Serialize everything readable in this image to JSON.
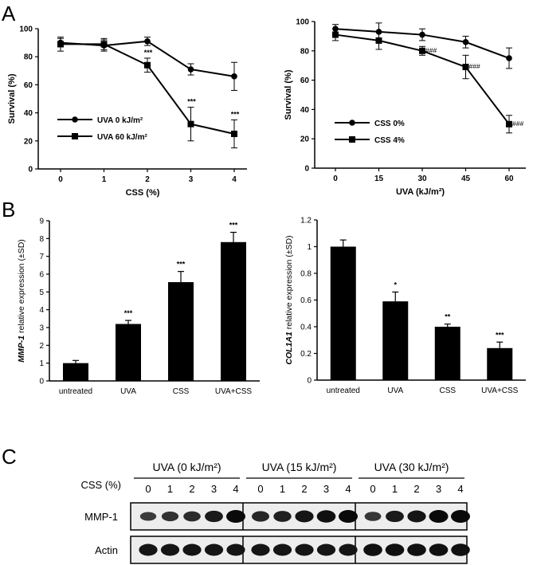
{
  "panel_labels": {
    "a": "A",
    "b": "B",
    "c": "C"
  },
  "chart_data": [
    {
      "type": "line",
      "title": "",
      "xlabel": "CSS (%)",
      "ylabel": "Survival (%)",
      "x": [
        0,
        1,
        2,
        3,
        4
      ],
      "xticks": [
        "0",
        "1",
        "2",
        "3",
        "4"
      ],
      "yticks": [
        "0",
        "20",
        "40",
        "60",
        "80",
        "100"
      ],
      "ylim": [
        0,
        100
      ],
      "legend_position": "bottom-left",
      "series": [
        {
          "name": "UVA 0 kJ/m²",
          "marker": "circle",
          "values": [
            90,
            88,
            91,
            71,
            66
          ],
          "errors": [
            3,
            4,
            3,
            4,
            10
          ],
          "annotations": [
            "",
            "",
            "",
            "",
            ""
          ]
        },
        {
          "name": "UVA 60 kJ/m²",
          "marker": "square",
          "values": [
            89,
            89,
            74,
            32,
            25
          ],
          "errors": [
            5,
            4,
            5,
            12,
            10
          ],
          "annotations": [
            "",
            "",
            "***",
            "***",
            "***"
          ]
        }
      ]
    },
    {
      "type": "line",
      "title": "",
      "xlabel": "UVA (kJ/m²)",
      "ylabel": "Survival (%)",
      "x": [
        0,
        15,
        30,
        45,
        60
      ],
      "xticks": [
        "0",
        "15",
        "30",
        "45",
        "60"
      ],
      "yticks": [
        "0",
        "20",
        "40",
        "60",
        "80",
        "100"
      ],
      "ylim": [
        0,
        100
      ],
      "legend_position": "bottom-left",
      "series": [
        {
          "name": "CSS 0%",
          "marker": "circle",
          "values": [
            95,
            93,
            91,
            86,
            75
          ],
          "errors": [
            3,
            6,
            4,
            4,
            7
          ],
          "annotations": [
            "",
            "",
            "",
            "",
            ""
          ]
        },
        {
          "name": "CSS 4%",
          "marker": "square",
          "values": [
            91,
            87,
            80,
            69,
            30
          ],
          "errors": [
            4,
            6,
            3,
            8,
            6
          ],
          "annotations": [
            "",
            "",
            "###",
            "###",
            "###"
          ]
        }
      ]
    },
    {
      "type": "bar",
      "title": "",
      "xlabel": "",
      "ylabel_italic": "MMP-1",
      "ylabel_rest": " relative expression (±SD)",
      "categories": [
        "untreated",
        "UVA",
        "CSS",
        "UVA+CSS"
      ],
      "values": [
        1.0,
        3.2,
        5.55,
        7.8
      ],
      "errors": [
        0.15,
        0.2,
        0.6,
        0.55
      ],
      "annotations": [
        "",
        "***",
        "***",
        "***"
      ],
      "yticks": [
        "0",
        "1",
        "2",
        "3",
        "4",
        "5",
        "6",
        "7",
        "8",
        "9"
      ],
      "ylim": [
        0,
        9
      ]
    },
    {
      "type": "bar",
      "title": "",
      "xlabel": "",
      "ylabel_italic": "COL1A1",
      "ylabel_rest": " relative expression (±SD)",
      "categories": [
        "untreated",
        "UVA",
        "CSS",
        "UVA+CSS"
      ],
      "values": [
        1.0,
        0.59,
        0.4,
        0.24
      ],
      "errors": [
        0.05,
        0.07,
        0.02,
        0.045
      ],
      "annotations": [
        "",
        "*",
        "**",
        "***"
      ],
      "yticks": [
        "0",
        "0.2",
        "0.4",
        "0.6",
        "0.8",
        "1",
        "1.2"
      ],
      "ylim": [
        0,
        1.2
      ]
    }
  ],
  "blot": {
    "row_label": "CSS (%)",
    "lane_labels": [
      "0",
      "1",
      "2",
      "3",
      "4"
    ],
    "groups": [
      {
        "name": "UVA (0 kJ/m²)"
      },
      {
        "name": "UVA (15 kJ/m²)"
      },
      {
        "name": "UVA (30 kJ/m²)"
      }
    ],
    "rows": [
      {
        "name": "MMP-1",
        "intensity": [
          0.55,
          0.65,
          0.7,
          0.85,
          1.0,
          0.75,
          0.8,
          0.9,
          0.95,
          1.0,
          0.6,
          0.85,
          0.9,
          1.0,
          1.0
        ]
      },
      {
        "name": "Actin",
        "intensity": [
          0.9,
          0.9,
          0.9,
          0.9,
          0.9,
          0.9,
          0.9,
          0.9,
          0.9,
          0.9,
          0.95,
          0.95,
          0.95,
          0.95,
          0.95
        ]
      }
    ]
  }
}
